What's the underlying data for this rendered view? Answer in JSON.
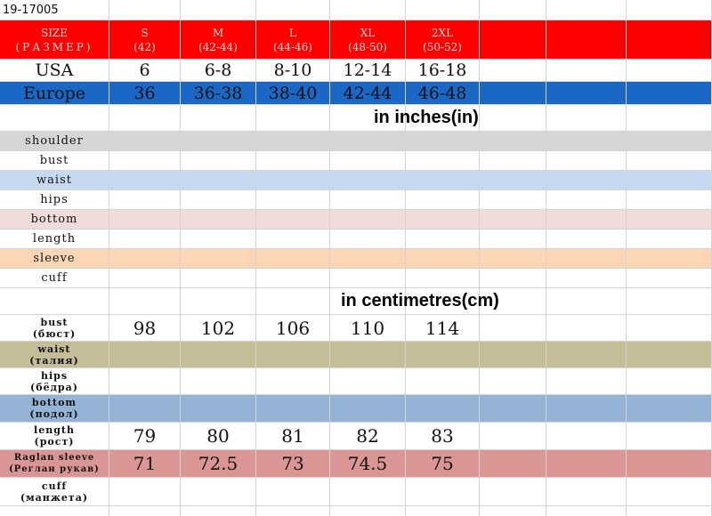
{
  "code": "19-17005",
  "header": {
    "label": "SIZE",
    "label_ru": "(РАЗМЕР)",
    "sizes": [
      {
        "size": "S",
        "ru": "(42)"
      },
      {
        "size": "M",
        "ru": "(42-44)"
      },
      {
        "size": "L",
        "ru": "(44-46)"
      },
      {
        "size": "XL",
        "ru": "(48-50)"
      },
      {
        "size": "2XL",
        "ru": "(50-52)"
      }
    ]
  },
  "usa": {
    "label": "USA",
    "values": [
      "6",
      "6-8",
      "8-10",
      "12-14",
      "16-18"
    ]
  },
  "europe": {
    "label": "Europe",
    "values": [
      "36",
      "36-38",
      "38-40",
      "42-44",
      "46-48"
    ]
  },
  "inches": {
    "title": "in inches(in)",
    "rows": [
      "shoulder",
      "bust",
      "waist",
      "hips",
      "bottom",
      "length",
      "sleeve",
      "cuff"
    ]
  },
  "centimetres": {
    "title": "in centimetres(cm)",
    "rows": [
      {
        "label": "bust",
        "label_ru": "(бюст)",
        "values": [
          "98",
          "102",
          "106",
          "110",
          "114"
        ]
      },
      {
        "label": "waist",
        "label_ru": "(талия)",
        "values": [
          "",
          "",
          "",
          "",
          ""
        ]
      },
      {
        "label": "hips",
        "label_ru": "(бёдра)",
        "values": [
          "",
          "",
          "",
          "",
          ""
        ]
      },
      {
        "label": "bottom",
        "label_ru": "(подол)",
        "values": [
          "",
          "",
          "",
          "",
          ""
        ]
      },
      {
        "label": "length",
        "label_ru": "(рост)",
        "values": [
          "79",
          "80",
          "81",
          "82",
          "83"
        ]
      },
      {
        "label": "Raglan sleeve",
        "label_ru": "(Реглан рукав)",
        "values": [
          "71",
          "72.5",
          "73",
          "74.5",
          "75"
        ]
      },
      {
        "label": "cuff",
        "label_ru": "(манжета)",
        "values": [
          "",
          "",
          "",
          "",
          ""
        ]
      }
    ]
  },
  "colors": {
    "header_red": "#ff0000",
    "europe_blue": "#1a67c6",
    "shoulder_gray": "#d6d6d6",
    "waist_blue": "#c7d9f1",
    "bottom_pink": "#f2dcdb",
    "sleeve_peach": "#fcd5b4",
    "cm_waist_khaki": "#c4bd97",
    "cm_bottom_blue": "#95b3d7",
    "cm_sleeve_rose": "#da9694"
  }
}
